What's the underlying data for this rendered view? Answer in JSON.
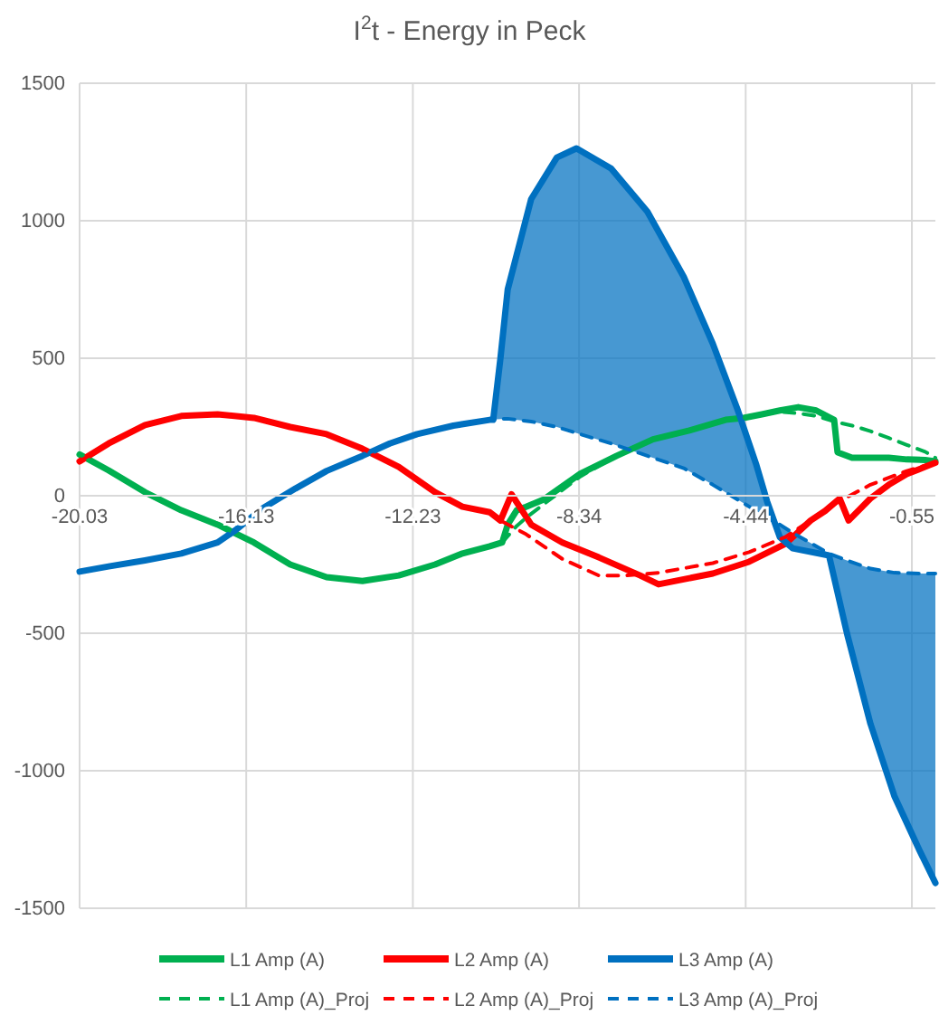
{
  "chart_data": {
    "type": "line",
    "title": "I$^{2}$t - Energy in Peck",
    "xlim": [
      -20.03,
      0
    ],
    "xticks": [
      -20.03,
      -16.13,
      -12.23,
      -8.34,
      -4.44,
      -0.55
    ],
    "ylim": [
      -1500,
      1500
    ],
    "yticks": [
      -1500,
      -1000,
      -500,
      0,
      500,
      1000,
      1500
    ],
    "grid": true,
    "legend": "bottom",
    "series": [
      {
        "name": "L1 Amp (A)",
        "color": "#00b050",
        "line_style": "solid",
        "x": [
          -20.03,
          -19.35,
          -18.5,
          -17.65,
          -16.8,
          -15.95,
          -15.1,
          -14.25,
          -13.41,
          -12.56,
          -11.71,
          -11.07,
          -10.43,
          -10.14,
          -10.01,
          -9.8,
          -9.58,
          -9.16,
          -8.31,
          -7.46,
          -6.61,
          -5.76,
          -4.91,
          -4.49,
          -4.06,
          -3.64,
          -3.21,
          -2.79,
          -2.37,
          -2.29,
          -1.95,
          -1.09,
          -0.67,
          -0.24,
          0
        ],
        "values": [
          150,
          92,
          13,
          -53,
          -105,
          -170,
          -250,
          -296,
          -310,
          -290,
          -250,
          -210,
          -184,
          -170,
          -105,
          -53,
          -40,
          -13,
          80,
          145,
          205,
          237,
          276,
          283,
          296,
          310,
          322,
          310,
          276,
          158,
          138,
          138,
          132,
          130,
          125
        ]
      },
      {
        "name": "L2 Amp (A)",
        "color": "#ff0000",
        "line_style": "solid",
        "x": [
          -20.03,
          -19.35,
          -18.5,
          -17.65,
          -16.8,
          -15.95,
          -15.1,
          -14.25,
          -13.41,
          -12.56,
          -11.71,
          -11.07,
          -10.43,
          -10.18,
          -9.92,
          -9.46,
          -8.73,
          -7.88,
          -6.91,
          -6.48,
          -5.21,
          -4.36,
          -3.51,
          -2.92,
          -2.58,
          -2.24,
          -2.03,
          -1.52,
          -1.09,
          -0.67,
          -0.24,
          0
        ],
        "values": [
          125,
          190,
          257,
          290,
          296,
          283,
          250,
          224,
          171,
          105,
          13,
          -40,
          -60,
          -90,
          5,
          -105,
          -170,
          -224,
          -290,
          -322,
          -283,
          -240,
          -175,
          -90,
          -55,
          -10,
          -90,
          -10,
          40,
          79,
          105,
          120
        ]
      },
      {
        "name": "L3 Amp (A)",
        "color": "#0070c0",
        "line_style": "solid",
        "x": [
          -20.03,
          -19.35,
          -18.5,
          -17.65,
          -16.8,
          -16.38,
          -15.74,
          -14.98,
          -14.25,
          -13.41,
          -12.77,
          -12.13,
          -11.28,
          -10.43,
          -10.35,
          -10.18,
          -10.01,
          -9.46,
          -8.86,
          -8.4,
          -7.59,
          -6.74,
          -5.89,
          -5.21,
          -4.62,
          -4.19,
          -3.94,
          -3.64,
          -3.34,
          -2.49,
          -2.07,
          -1.52,
          -0.96,
          -0.37,
          0
        ],
        "values": [
          -276,
          -257,
          -235,
          -210,
          -170,
          -125,
          -45,
          26,
          90,
          145,
          190,
          224,
          255,
          276,
          276,
          500,
          750,
          1079,
          1230,
          1263,
          1190,
          1033,
          796,
          553,
          309,
          112,
          -20,
          -151,
          -191,
          -217,
          -500,
          -829,
          -1092,
          -1290,
          -1408
        ],
        "lower": [
          -276,
          -257,
          -235,
          -210,
          -170,
          -125,
          -45,
          26,
          90,
          145,
          190,
          224,
          255,
          276,
          277,
          279,
          280,
          270,
          250,
          228,
          190,
          145,
          100,
          40,
          -15,
          -55,
          -80,
          -105,
          -135,
          -210,
          -235,
          -265,
          -280,
          -283,
          -283
        ],
        "upper": [
          -276,
          -257,
          -235,
          -210,
          -170,
          -125,
          -45,
          26,
          90,
          145,
          190,
          224,
          255,
          276,
          276,
          500,
          750,
          1079,
          1230,
          1263,
          1190,
          1033,
          796,
          553,
          309,
          112,
          -20,
          -151,
          -191,
          -217,
          -500,
          -829,
          -1092,
          -1290,
          -1408
        ]
      },
      {
        "name": "L1 Amp (A)_Proj",
        "color": "#00b050",
        "line_style": "dashed",
        "x": [
          -20.03,
          -19.35,
          -18.5,
          -17.65,
          -16.8,
          -15.95,
          -15.1,
          -14.25,
          -13.41,
          -12.56,
          -11.71,
          -11.07,
          -10.43,
          -10.14,
          -9.8,
          -9.58,
          -9.16,
          -8.31,
          -7.46,
          -6.61,
          -5.76,
          -4.91,
          -4.49,
          -4.06,
          -3.64,
          -3.21,
          -2.79,
          -2.37,
          -1.95,
          -1.52,
          -1.09,
          -0.67,
          -0.24,
          0
        ],
        "values": [
          150,
          92,
          13,
          -53,
          -105,
          -170,
          -250,
          -296,
          -310,
          -290,
          -250,
          -210,
          -184,
          -170,
          -110,
          -80,
          -30,
          70,
          145,
          205,
          237,
          276,
          283,
          296,
          305,
          300,
          290,
          270,
          255,
          235,
          210,
          185,
          160,
          138
        ]
      },
      {
        "name": "L2 Amp (A)_Proj",
        "color": "#ff0000",
        "line_style": "dashed",
        "x": [
          -20.03,
          -19.35,
          -18.5,
          -17.65,
          -16.8,
          -15.95,
          -15.1,
          -14.25,
          -13.41,
          -12.56,
          -11.71,
          -11.07,
          -10.43,
          -10.18,
          -9.58,
          -8.73,
          -7.88,
          -7.25,
          -6.48,
          -5.21,
          -4.36,
          -3.51,
          -2.92,
          -2.37,
          -1.52,
          -0.67,
          0
        ],
        "values": [
          125,
          190,
          257,
          290,
          296,
          283,
          250,
          224,
          171,
          105,
          13,
          -40,
          -60,
          -90,
          -140,
          -230,
          -290,
          -290,
          -280,
          -245,
          -205,
          -150,
          -90,
          -30,
          40,
          90,
          120
        ]
      },
      {
        "name": "L3 Amp (A)_Proj",
        "color": "#0070c0",
        "line_style": "dashed",
        "x": [
          -20.03,
          -19.35,
          -18.5,
          -17.65,
          -16.8,
          -16.38,
          -15.74,
          -14.98,
          -14.25,
          -13.41,
          -12.77,
          -12.13,
          -11.28,
          -10.43,
          -10.35,
          -10.18,
          -10.01,
          -9.46,
          -8.86,
          -8.4,
          -7.59,
          -6.74,
          -5.89,
          -5.21,
          -4.62,
          -4.19,
          -3.94,
          -3.64,
          -3.34,
          -2.49,
          -2.07,
          -1.52,
          -0.96,
          -0.37,
          0
        ],
        "values": [
          -276,
          -257,
          -235,
          -210,
          -170,
          -125,
          -45,
          26,
          90,
          145,
          190,
          224,
          255,
          276,
          277,
          279,
          280,
          270,
          250,
          228,
          190,
          145,
          100,
          40,
          -15,
          -55,
          -80,
          -105,
          -135,
          -210,
          -235,
          -265,
          -280,
          -283,
          -283
        ]
      }
    ]
  }
}
